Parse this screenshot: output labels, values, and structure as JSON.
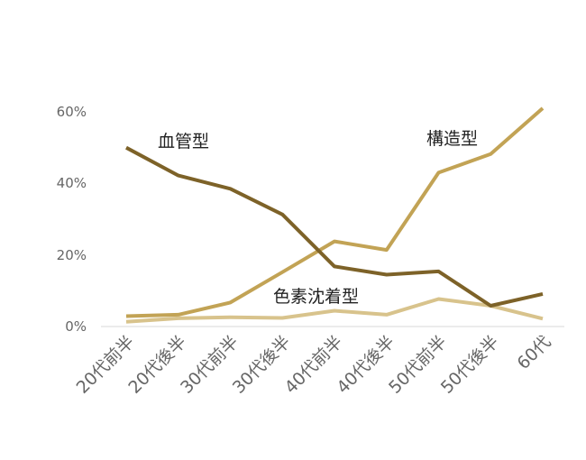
{
  "chart_data": {
    "type": "line",
    "categories": [
      "20代前半",
      "20代後半",
      "30代前半",
      "30代後半",
      "40代前半",
      "40代後半",
      "50代前半",
      "50代後半",
      "60代"
    ],
    "y_ticks": [
      "0%",
      "20%",
      "40%",
      "60%"
    ],
    "ylim": [
      0,
      60
    ],
    "grid": false,
    "series": [
      {
        "name": "血管型",
        "color": "#7d6228",
        "values": [
          50,
          42.2,
          38.5,
          31.3,
          16.8,
          14.5,
          15.4,
          5.8,
          9.1
        ]
      },
      {
        "name": "構造型",
        "color": "#c2a355",
        "values": [
          2.9,
          3.3,
          6.7,
          15.2,
          23.8,
          21.4,
          43,
          48.2,
          61
        ]
      },
      {
        "name": "色素沈着型",
        "color": "#d8c38c",
        "values": [
          1.3,
          2.3,
          2.6,
          2.4,
          4.4,
          3.3,
          7.7,
          5.8,
          2.2
        ]
      }
    ]
  }
}
